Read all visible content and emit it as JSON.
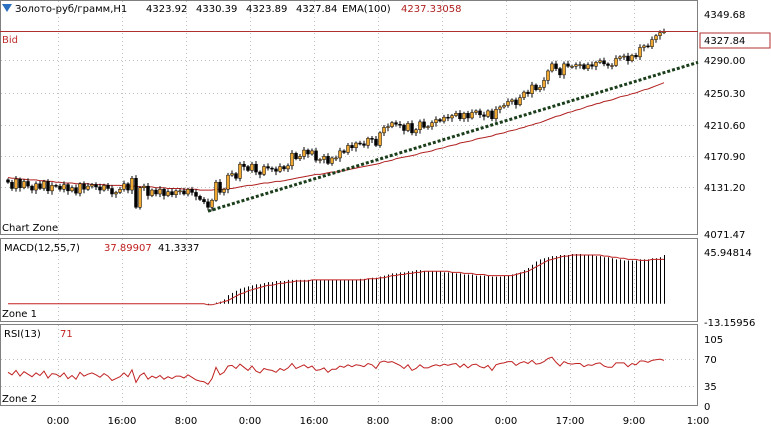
{
  "header": {
    "symbol": "Золото-руб/грамм,H1",
    "open": "4323.92",
    "high": "4330.39",
    "low": "4323.89",
    "close": "4327.84",
    "ema_label": "EMA(100)",
    "ema_value": "4237.33058"
  },
  "bid_label": "Bid",
  "bid_price": "4327.84",
  "zones": {
    "main": "Chart Zone",
    "zone1": "Zone 1",
    "zone2": "Zone 2"
  },
  "price_axis": [
    "4349.68",
    "4290.00",
    "4250.30",
    "4210.60",
    "4170.90",
    "4131.20",
    "4071.47"
  ],
  "macd": {
    "label": "MACD(12,55,7)",
    "value1": "37.89907",
    "value2": "41.3337",
    "axis_top": "45.94814",
    "axis_bottom": "-13.15956"
  },
  "rsi": {
    "label": "RSI(13)",
    "value": "71",
    "axis": [
      "105",
      "70",
      "35",
      "0"
    ]
  },
  "time_axis": [
    "0:00",
    "16:00",
    "8:00",
    "0:00",
    "16:00",
    "8:00",
    "8:00",
    "0:00",
    "17:00",
    "9:00",
    "1:00"
  ],
  "colors": {
    "up": "#f0a830",
    "down": "#000000",
    "ema": "#b02020",
    "trend": "#1a3d1a",
    "bid_line": "#b03030",
    "rsi": "#c02020",
    "macd_signal": "#c02020",
    "grid": "#c0c0c0"
  },
  "chart_data": {
    "type": "candlestick",
    "title": "Золото-руб/грамм,H1",
    "price_range": [
      4071.47,
      4349.68
    ],
    "close": [
      4135,
      4127,
      4139,
      4128,
      4136,
      4130,
      4125,
      4133,
      4127,
      4136,
      4124,
      4131,
      4130,
      4126,
      4132,
      4124,
      4128,
      4121,
      4133,
      4126,
      4130,
      4132,
      4129,
      4125,
      4131,
      4127,
      4120,
      4122,
      4126,
      4133,
      4125,
      4140,
      4103,
      4128,
      4130,
      4118,
      4125,
      4120,
      4126,
      4118,
      4123,
      4119,
      4124,
      4124,
      4120,
      4126,
      4122,
      4117,
      4113,
      4110,
      4103,
      4112,
      4135,
      4122,
      4126,
      4144,
      4146,
      4140,
      4158,
      4155,
      4150,
      4158,
      4148,
      4145,
      4155,
      4153,
      4152,
      4149,
      4155,
      4152,
      4156,
      4172,
      4165,
      4168,
      4176,
      4171,
      4175,
      4163,
      4164,
      4168,
      4159,
      4166,
      4166,
      4175,
      4173,
      4182,
      4179,
      4185,
      4184,
      4182,
      4191,
      4190,
      4182,
      4198,
      4205,
      4206,
      4211,
      4209,
      4208,
      4201,
      4210,
      4198,
      4202,
      4212,
      4205,
      4206,
      4211,
      4215,
      4213,
      4218,
      4217,
      4220,
      4223,
      4216,
      4223,
      4217,
      4224,
      4226,
      4221,
      4219,
      4226,
      4216,
      4228,
      4231,
      4233,
      4238,
      4240,
      4234,
      4243,
      4250,
      4248,
      4259,
      4253,
      4256,
      4265,
      4277,
      4286,
      4280,
      4272,
      4286,
      4283,
      4283,
      4285,
      4285,
      4280,
      4285,
      4283,
      4288,
      4290,
      4286,
      4284,
      4284,
      4293,
      4295,
      4296,
      4290,
      4297,
      4295,
      4307,
      4309,
      4308,
      4317,
      4322,
      4326,
      4327
    ],
    "ema100": [
      4141,
      4140,
      4140,
      4139,
      4139,
      4138,
      4138,
      4138,
      4137,
      4137,
      4136,
      4136,
      4135,
      4135,
      4134,
      4134,
      4134,
      4133,
      4133,
      4133,
      4133,
      4132,
      4132,
      4132,
      4132,
      4131,
      4131,
      4131,
      4131,
      4130,
      4130,
      4130,
      4130,
      4129,
      4129,
      4129,
      4129,
      4128,
      4128,
      4128,
      4127,
      4127,
      4127,
      4127,
      4126,
      4126,
      4126,
      4126,
      4125,
      4125,
      4125,
      4125,
      4126,
      4126,
      4126,
      4127,
      4127,
      4128,
      4129,
      4130,
      4131,
      4131,
      4132,
      4133,
      4134,
      4134,
      4135,
      4136,
      4136,
      4137,
      4138,
      4139,
      4140,
      4141,
      4142,
      4143,
      4144,
      4145,
      4145,
      4146,
      4147,
      4148,
      4148,
      4149,
      4150,
      4151,
      4152,
      4153,
      4154,
      4155,
      4156,
      4157,
      4158,
      4159,
      4161,
      4162,
      4163,
      4165,
      4166,
      4167,
      4168,
      4169,
      4170,
      4172,
      4173,
      4174,
      4175,
      4177,
      4178,
      4179,
      4181,
      4182,
      4183,
      4185,
      4186,
      4187,
      4188,
      4190,
      4191,
      4192,
      4193,
      4194,
      4196,
      4197,
      4198,
      4200,
      4201,
      4202,
      4204,
      4205,
      4207,
      4208,
      4210,
      4211,
      4213,
      4215,
      4217,
      4219,
      4220,
      4222,
      4224,
      4225,
      4227,
      4228,
      4230,
      4232,
      4233,
      4235,
      4236,
      4238,
      4239,
      4240,
      4242,
      4244,
      4245,
      4246,
      4248,
      4249,
      4251,
      4253,
      4254,
      4256,
      4258,
      4260,
      4262
    ],
    "trendline": {
      "from": [
        50,
        4098
      ],
      "to": [
        170,
        4282
      ]
    },
    "macd_bars": [
      0,
      0,
      0,
      0,
      0,
      0,
      0,
      0,
      0,
      0,
      0,
      0,
      0,
      0,
      0,
      0,
      0,
      0,
      0,
      0,
      0,
      0,
      0,
      0,
      0,
      0,
      0,
      0,
      0,
      0,
      0,
      0,
      0,
      0,
      0,
      0,
      0,
      0,
      0,
      0,
      0,
      0,
      0,
      0,
      0,
      0,
      0,
      0,
      0,
      0,
      -1,
      0,
      1,
      2,
      4,
      8,
      10,
      12,
      14,
      15,
      16,
      17,
      18,
      18,
      19,
      20,
      20,
      21,
      21,
      21,
      22,
      22,
      22,
      22,
      22,
      22,
      22,
      22,
      22,
      22,
      22,
      22,
      22,
      22,
      22,
      22,
      22,
      22,
      23,
      23,
      23,
      24,
      24,
      25,
      26,
      27,
      28,
      28,
      29,
      29,
      30,
      30,
      31,
      31,
      30,
      30,
      30,
      30,
      30,
      29,
      29,
      29,
      28,
      28,
      27,
      27,
      27,
      26,
      26,
      26,
      26,
      25,
      25,
      25,
      26,
      26,
      27,
      28,
      29,
      31,
      33,
      36,
      39,
      41,
      42,
      43,
      44,
      44,
      45,
      45,
      45,
      46,
      46,
      46,
      45,
      45,
      45,
      44,
      44,
      43,
      43,
      42,
      41,
      41,
      40,
      40,
      40,
      40,
      41,
      41,
      41,
      42,
      42,
      43,
      45
    ],
    "macd_signal": [
      0,
      0,
      0,
      0,
      0,
      0,
      0,
      0,
      0,
      0,
      0,
      0,
      0,
      0,
      0,
      0,
      0,
      0,
      0,
      0,
      0,
      0,
      0,
      0,
      0,
      0,
      0,
      0,
      0,
      0,
      0,
      0,
      0,
      0,
      0,
      0,
      0,
      0,
      0,
      0,
      0,
      0,
      0,
      0,
      0,
      0,
      0,
      0,
      0,
      0,
      -1,
      -1,
      0,
      1,
      2,
      3,
      5,
      7,
      9,
      10,
      12,
      13,
      14,
      15,
      16,
      17,
      17,
      18,
      19,
      19,
      20,
      20,
      21,
      21,
      21,
      21,
      22,
      22,
      22,
      22,
      22,
      22,
      22,
      22,
      22,
      22,
      22,
      22,
      22,
      22,
      23,
      23,
      23,
      24,
      24,
      25,
      26,
      26,
      27,
      27,
      28,
      28,
      29,
      29,
      30,
      30,
      30,
      30,
      30,
      30,
      30,
      29,
      29,
      29,
      28,
      28,
      28,
      27,
      27,
      27,
      26,
      26,
      26,
      26,
      26,
      26,
      26,
      27,
      28,
      29,
      30,
      32,
      34,
      36,
      38,
      40,
      41,
      42,
      43,
      44,
      44,
      45,
      45,
      45,
      45,
      45,
      45,
      45,
      45,
      44,
      44,
      43,
      43,
      42,
      42,
      41,
      41,
      41,
      40,
      40,
      40,
      41,
      41,
      41,
      41
    ],
    "rsi": [
      52,
      48,
      55,
      46,
      53,
      49,
      45,
      51,
      47,
      54,
      43,
      50,
      49,
      45,
      51,
      42,
      47,
      41,
      52,
      46,
      49,
      51,
      48,
      44,
      50,
      46,
      39,
      42,
      45,
      51,
      45,
      56,
      36,
      47,
      51,
      41,
      46,
      43,
      47,
      41,
      45,
      42,
      46,
      46,
      43,
      48,
      44,
      40,
      38,
      37,
      33,
      42,
      60,
      48,
      52,
      62,
      63,
      58,
      65,
      60,
      55,
      62,
      54,
      51,
      58,
      56,
      55,
      52,
      58,
      55,
      59,
      66,
      58,
      61,
      64,
      59,
      62,
      55,
      56,
      59,
      52,
      57,
      57,
      62,
      60,
      64,
      61,
      64,
      63,
      61,
      66,
      64,
      58,
      68,
      70,
      68,
      69,
      66,
      63,
      58,
      64,
      55,
      58,
      64,
      59,
      59,
      62,
      64,
      62,
      65,
      63,
      65,
      66,
      60,
      65,
      59,
      64,
      65,
      61,
      59,
      63,
      55,
      64,
      66,
      67,
      69,
      69,
      63,
      67,
      69,
      66,
      71,
      65,
      66,
      69,
      74,
      76,
      68,
      62,
      69,
      66,
      65,
      66,
      66,
      61,
      64,
      63,
      66,
      67,
      62,
      60,
      60,
      67,
      67,
      67,
      61,
      66,
      64,
      70,
      70,
      68,
      71,
      72,
      73,
      71
    ],
    "rsi_range": [
      0,
      105
    ],
    "time_labels": [
      "0:00",
      "16:00",
      "8:00",
      "0:00",
      "16:00",
      "8:00",
      "8:00",
      "0:00",
      "17:00",
      "9:00",
      "1:00"
    ]
  }
}
